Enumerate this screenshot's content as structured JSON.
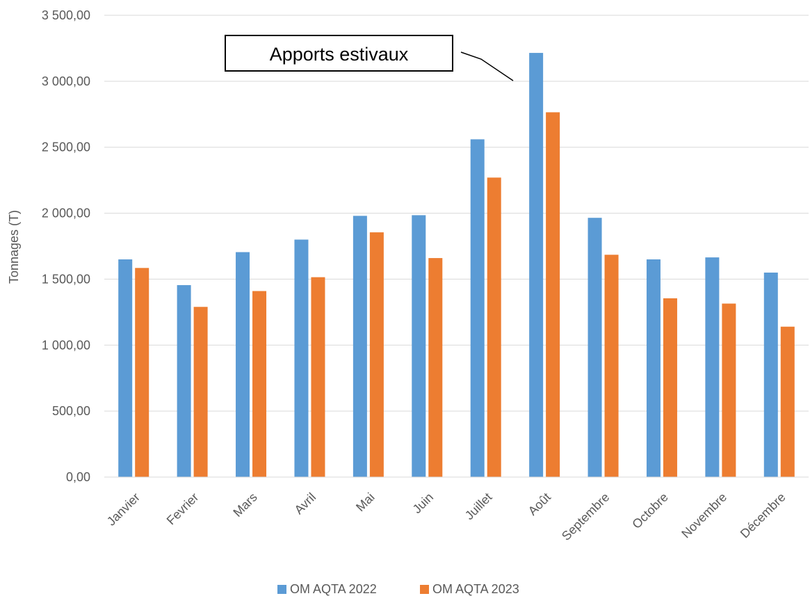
{
  "chart_data": {
    "type": "bar",
    "title": "",
    "xlabel": "",
    "ylabel": "Tonnages (T)",
    "ylim": [
      0,
      3500
    ],
    "ytick_values": [
      0,
      500,
      1000,
      1500,
      2000,
      2500,
      3000,
      3500
    ],
    "ytick_labels": [
      "0,00",
      "500,00",
      "1 000,00",
      "1 500,00",
      "2 000,00",
      "2 500,00",
      "3 000,00",
      "3 500,00"
    ],
    "grid": "horizontal",
    "legend_position": "bottom",
    "categories": [
      "Janvier",
      "Fevrier",
      "Mars",
      "Avril",
      "Mai",
      "Juin",
      "Juillet",
      "Août",
      "Septembre",
      "Octobre",
      "Novembre",
      "Décembre"
    ],
    "series": [
      {
        "name": "OM AQTA 2022",
        "color": "#5B9BD5",
        "values": [
          1650,
          1455,
          1705,
          1800,
          1980,
          1985,
          2560,
          3215,
          1965,
          1650,
          1665,
          1550
        ]
      },
      {
        "name": "OM AQTA 2023",
        "color": "#ED7D31",
        "values": [
          1585,
          1290,
          1410,
          1515,
          1855,
          1660,
          2270,
          2765,
          1685,
          1355,
          1315,
          1140
        ]
      }
    ],
    "annotations": [
      {
        "text": "Apports estivaux",
        "target_category": "Août",
        "target_series": "OM AQTA 2022"
      }
    ]
  }
}
